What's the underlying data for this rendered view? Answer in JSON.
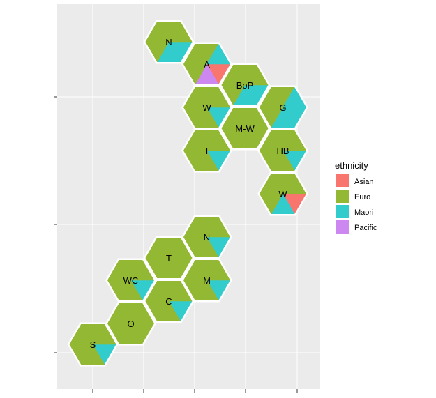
{
  "chart_data": {
    "type": "hexbin-map",
    "title": "",
    "xlabel": "",
    "ylabel": "",
    "grid": true,
    "legend": {
      "title": "ethnicity",
      "placement": "right",
      "entries": [
        {
          "name": "Asian",
          "color": "#F8766D"
        },
        {
          "name": "Euro",
          "color": "#93B833"
        },
        {
          "name": "Maori",
          "color": "#33CCCC"
        },
        {
          "name": "Pacific",
          "color": "#CC88F0"
        }
      ]
    },
    "x_ticks": [
      "",
      "",
      "",
      "",
      ""
    ],
    "y_ticks": [
      "",
      "",
      ""
    ],
    "hexagons": [
      {
        "label": "N",
        "col": 2,
        "row": 0,
        "shares": {
          "Euro": 4,
          "Maori": 2
        }
      },
      {
        "label": "A",
        "col": 3,
        "row": 0,
        "shares": {
          "Euro": 3,
          "Maori": 1,
          "Pacific": 1,
          "Asian": 1
        }
      },
      {
        "label": "W",
        "col": 3,
        "row": 1,
        "shares": {
          "Euro": 5,
          "Maori": 1
        }
      },
      {
        "label": "G",
        "col": 5,
        "row": 1,
        "shares": {
          "Euro": 3,
          "Maori": 3
        }
      },
      {
        "label": "BoP",
        "col": 4,
        "row": 1,
        "shares": {
          "Euro": 4,
          "Maori": 2
        }
      },
      {
        "label": "T",
        "col": 3,
        "row": 2,
        "shares": {
          "Euro": 5,
          "Maori": 1
        }
      },
      {
        "label": "HB",
        "col": 5,
        "row": 2,
        "shares": {
          "Euro": 5,
          "Maori": 1
        }
      },
      {
        "label": "M-W",
        "col": 4,
        "row": 2,
        "shares": {
          "Euro": 6
        }
      },
      {
        "label": "W",
        "col": 5,
        "row": 3,
        "shares": {
          "Euro": 4,
          "Maori": 1,
          "Asian": 1
        }
      },
      {
        "label": "N",
        "col": 3,
        "row": 4,
        "shares": {
          "Euro": 5,
          "Maori": 1
        }
      },
      {
        "label": "T",
        "col": 2,
        "row": 5,
        "shares": {
          "Euro": 6
        }
      },
      {
        "label": "WC",
        "col": 1,
        "row": 5,
        "shares": {
          "Euro": 5,
          "Maori": 1
        }
      },
      {
        "label": "M",
        "col": 3,
        "row": 5,
        "shares": {
          "Euro": 5,
          "Maori": 1
        }
      },
      {
        "label": "C",
        "col": 2,
        "row": 6,
        "shares": {
          "Euro": 5,
          "Maori": 1
        }
      },
      {
        "label": "O",
        "col": 1,
        "row": 6,
        "shares": {
          "Euro": 6
        }
      },
      {
        "label": "S",
        "col": 0,
        "row": 7,
        "shares": {
          "Euro": 5,
          "Maori": 1
        }
      }
    ]
  }
}
